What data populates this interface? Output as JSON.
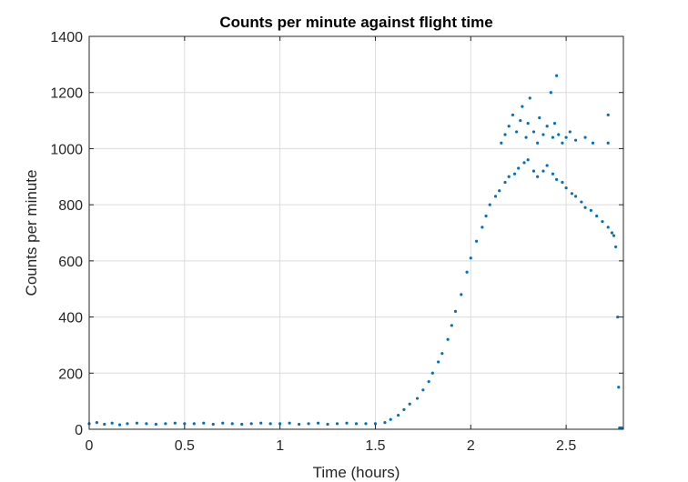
{
  "chart_data": {
    "type": "scatter",
    "title": "Counts per minute against flight time",
    "xlabel": "Time (hours)",
    "ylabel": "Counts per minute",
    "xlim": [
      0,
      2.8
    ],
    "ylim": [
      0,
      1400
    ],
    "xticks": [
      0,
      0.5,
      1,
      1.5,
      2,
      2.5
    ],
    "xtick_labels": [
      "0",
      "0.5",
      "1",
      "1.5",
      "2",
      "2.5"
    ],
    "yticks": [
      0,
      200,
      400,
      600,
      800,
      1000,
      1200,
      1400
    ],
    "ytick_labels": [
      "0",
      "200",
      "400",
      "600",
      "800",
      "1000",
      "1200",
      "1400"
    ],
    "grid": true,
    "box": true,
    "marker_color": "#0072BD",
    "series": [
      {
        "points": [
          [
            0.0,
            20
          ],
          [
            0.04,
            24
          ],
          [
            0.08,
            18
          ],
          [
            0.12,
            22
          ],
          [
            0.16,
            16
          ],
          [
            0.2,
            20
          ],
          [
            0.25,
            22
          ],
          [
            0.3,
            20
          ],
          [
            0.35,
            18
          ],
          [
            0.4,
            20
          ],
          [
            0.45,
            22
          ],
          [
            0.5,
            20
          ],
          [
            0.55,
            20
          ],
          [
            0.6,
            22
          ],
          [
            0.65,
            18
          ],
          [
            0.7,
            22
          ],
          [
            0.75,
            20
          ],
          [
            0.8,
            18
          ],
          [
            0.85,
            20
          ],
          [
            0.9,
            22
          ],
          [
            0.95,
            20
          ],
          [
            1.0,
            20
          ],
          [
            1.05,
            22
          ],
          [
            1.1,
            18
          ],
          [
            1.15,
            20
          ],
          [
            1.2,
            22
          ],
          [
            1.25,
            18
          ],
          [
            1.3,
            20
          ],
          [
            1.35,
            22
          ],
          [
            1.4,
            20
          ],
          [
            1.45,
            20
          ],
          [
            1.5,
            20
          ],
          [
            1.55,
            24
          ],
          [
            1.58,
            35
          ],
          [
            1.62,
            50
          ],
          [
            1.65,
            70
          ],
          [
            1.68,
            90
          ],
          [
            1.72,
            110
          ],
          [
            1.75,
            140
          ],
          [
            1.78,
            170
          ],
          [
            1.8,
            200
          ],
          [
            1.83,
            240
          ],
          [
            1.85,
            270
          ],
          [
            1.88,
            320
          ],
          [
            1.9,
            370
          ],
          [
            1.92,
            420
          ],
          [
            1.95,
            480
          ],
          [
            1.98,
            560
          ],
          [
            2.0,
            610
          ],
          [
            2.03,
            670
          ],
          [
            2.06,
            720
          ],
          [
            2.08,
            760
          ],
          [
            2.1,
            800
          ],
          [
            2.13,
            830
          ],
          [
            2.15,
            850
          ],
          [
            2.18,
            880
          ],
          [
            2.2,
            900
          ],
          [
            2.23,
            910
          ],
          [
            2.25,
            930
          ],
          [
            2.28,
            950
          ],
          [
            2.3,
            960
          ],
          [
            2.33,
            920
          ],
          [
            2.35,
            900
          ],
          [
            2.38,
            920
          ],
          [
            2.4,
            940
          ],
          [
            2.43,
            910
          ],
          [
            2.45,
            890
          ],
          [
            2.48,
            880
          ],
          [
            2.5,
            860
          ],
          [
            2.53,
            840
          ],
          [
            2.55,
            830
          ],
          [
            2.58,
            810
          ],
          [
            2.6,
            790
          ],
          [
            2.63,
            780
          ],
          [
            2.66,
            760
          ],
          [
            2.69,
            740
          ],
          [
            2.72,
            720
          ],
          [
            2.74,
            700
          ],
          [
            2.75,
            690
          ],
          [
            2.76,
            650
          ],
          [
            2.77,
            400
          ],
          [
            2.775,
            150
          ],
          [
            2.78,
            5
          ],
          [
            2.79,
            5
          ],
          [
            2.16,
            1020
          ],
          [
            2.18,
            1050
          ],
          [
            2.2,
            1080
          ],
          [
            2.22,
            1120
          ],
          [
            2.24,
            1060
          ],
          [
            2.26,
            1100
          ],
          [
            2.27,
            1150
          ],
          [
            2.29,
            1040
          ],
          [
            2.3,
            1090
          ],
          [
            2.31,
            1180
          ],
          [
            2.33,
            1060
          ],
          [
            2.35,
            1020
          ],
          [
            2.36,
            1110
          ],
          [
            2.38,
            1050
          ],
          [
            2.4,
            1080
          ],
          [
            2.42,
            1200
          ],
          [
            2.43,
            1040
          ],
          [
            2.44,
            1090
          ],
          [
            2.45,
            1260
          ],
          [
            2.46,
            1050
          ],
          [
            2.48,
            1020
          ],
          [
            2.5,
            1040
          ],
          [
            2.52,
            1060
          ],
          [
            2.55,
            1030
          ],
          [
            2.6,
            1040
          ],
          [
            2.64,
            1020
          ],
          [
            2.72,
            1120
          ],
          [
            2.72,
            1020
          ]
        ]
      }
    ]
  }
}
